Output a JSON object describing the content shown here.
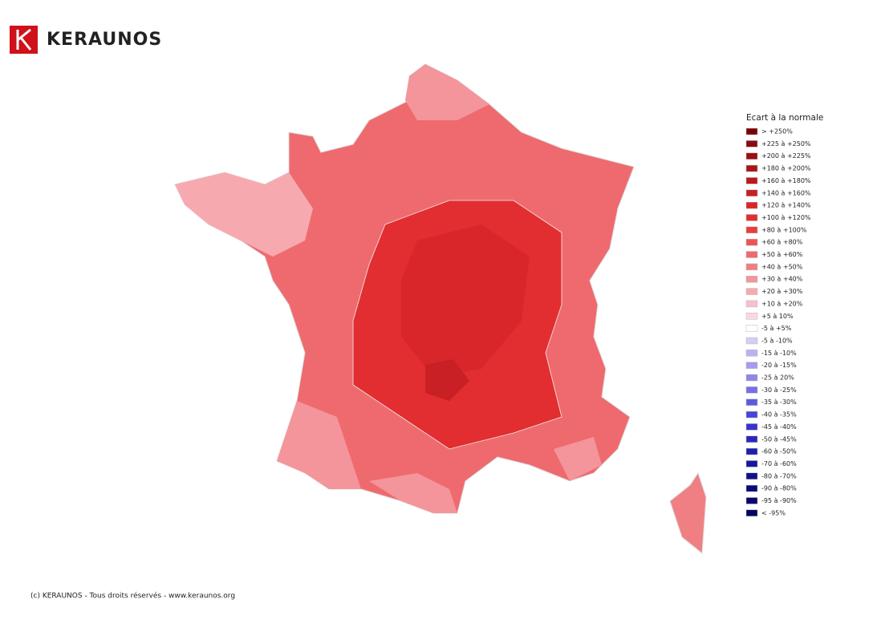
{
  "header": {
    "brand": "KERAUNOS"
  },
  "legend": {
    "title": "Ecart à la normale",
    "items": [
      {
        "label": "> +250%",
        "color": "#7a0008"
      },
      {
        "label": "+225 à +250%",
        "color": "#8a0a10"
      },
      {
        "label": "+200 à +225%",
        "color": "#9a1014"
      },
      {
        "label": "+180 à +200%",
        "color": "#aa1518"
      },
      {
        "label": "+160 à +180%",
        "color": "#b81a1e"
      },
      {
        "label": "+140 à +160%",
        "color": "#c82024"
      },
      {
        "label": "+120 à +140%",
        "color": "#d8262a"
      },
      {
        "label": "+100 à +120%",
        "color": "#e22e30"
      },
      {
        "label": "+80 à +100%",
        "color": "#e83e3e"
      },
      {
        "label": "+60 à +80%",
        "color": "#ec5458"
      },
      {
        "label": "+50 à +60%",
        "color": "#ef6a6e"
      },
      {
        "label": "+40 à +50%",
        "color": "#f07f84"
      },
      {
        "label": "+30 à +40%",
        "color": "#f3959a"
      },
      {
        "label": "+20 à +30%",
        "color": "#f6aab0"
      },
      {
        "label": "+10 à +20%",
        "color": "#f8c0c8"
      },
      {
        "label": "+5 à 10%",
        "color": "#fad8e2"
      },
      {
        "label": "-5 à +5%",
        "color": "#ffffff"
      },
      {
        "label": "-5 à -10%",
        "color": "#d8ccf4"
      },
      {
        "label": "-15 à -10%",
        "color": "#bab2f0"
      },
      {
        "label": "-20 à -15%",
        "color": "#a49cec"
      },
      {
        "label": "-25 à 20%",
        "color": "#8e86e8"
      },
      {
        "label": "-30 à -25%",
        "color": "#7670e4"
      },
      {
        "label": "-35 à -30%",
        "color": "#5e5ae0"
      },
      {
        "label": "-40 à -35%",
        "color": "#4844d8"
      },
      {
        "label": "-45 à -40%",
        "color": "#3834cc"
      },
      {
        "label": "-50 à -45%",
        "color": "#2a28bc"
      },
      {
        "label": "-60 à -50%",
        "color": "#201eac"
      },
      {
        "label": "-70 à -60%",
        "color": "#18169c"
      },
      {
        "label": "-80 à -70%",
        "color": "#10108c"
      },
      {
        "label": "-90 à -80%",
        "color": "#0a0a7c"
      },
      {
        "label": "-95 à -90%",
        "color": "#06066e"
      },
      {
        "label": "< -95%",
        "color": "#030360"
      }
    ]
  },
  "footer": {
    "text": "(c) KERAUNOS - Tous droits réservés - www.keraunos.org"
  }
}
